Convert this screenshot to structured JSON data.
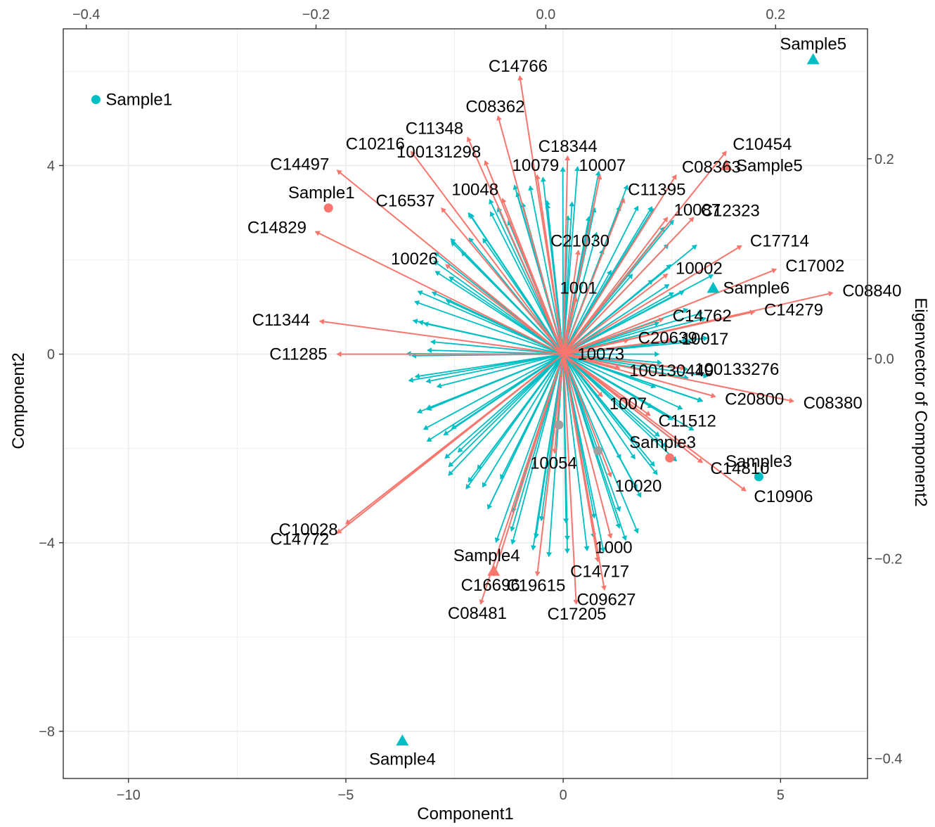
{
  "chart_data": {
    "type": "scatter",
    "title": "",
    "xlabel": "Component1",
    "ylabel": "Component2",
    "x2label": "",
    "y2label": "Eigenvector of Component2",
    "xlim": [
      -11.5,
      7.0
    ],
    "ylim": [
      -9.0,
      6.9
    ],
    "x2lim": [
      -0.42,
      0.28
    ],
    "y2lim": [
      -0.42,
      0.33
    ],
    "x_ticks": [
      -10,
      -5,
      0,
      5
    ],
    "y_ticks": [
      -8,
      -4,
      0,
      4
    ],
    "x2_ticks": [
      -0.4,
      -0.2,
      0.0,
      0.2
    ],
    "y2_ticks": [
      -0.4,
      -0.2,
      0.0,
      0.2
    ],
    "x_tick_labels": [
      "−10",
      "−5",
      "0",
      "5"
    ],
    "y_tick_labels": [
      "−8",
      "−4",
      "0",
      "4"
    ],
    "x2_tick_labels": [
      "−0.4",
      "−0.2",
      "0.0",
      "0.2"
    ],
    "y2_tick_labels": [
      "−0.4",
      "−0.2",
      "0.0",
      "0.2"
    ],
    "grid": true,
    "colors": {
      "red": "#f8766d",
      "teal": "#00bfc4",
      "panel_border": "#333333",
      "grid": "#ebebeb"
    },
    "samples": [
      {
        "label": "Sample1",
        "x": -10.75,
        "y": 5.4,
        "shape": "circle",
        "color": "teal",
        "label_pos": "right"
      },
      {
        "label": "Sample1",
        "x": -5.4,
        "y": 3.1,
        "shape": "circle",
        "color": "red",
        "label_pos": "above-left"
      },
      {
        "label": "Sample5",
        "x": 5.75,
        "y": 6.25,
        "shape": "triangle",
        "color": "teal",
        "label_pos": "above"
      },
      {
        "label": "Sample5",
        "x": 3.75,
        "y": 4.0,
        "shape": "triangle",
        "color": "red",
        "label_pos": "right"
      },
      {
        "label": "Sample6",
        "x": 3.45,
        "y": 1.4,
        "shape": "triangle",
        "color": "teal",
        "label_pos": "right"
      },
      {
        "label": "Sample3",
        "x": 2.45,
        "y": -2.2,
        "shape": "circle",
        "color": "red",
        "label_pos": "above-left"
      },
      {
        "label": "Sample3",
        "x": 4.5,
        "y": -2.6,
        "shape": "circle",
        "color": "teal",
        "label_pos": "above"
      },
      {
        "label": "Sample4",
        "x": -1.6,
        "y": -4.6,
        "shape": "triangle",
        "color": "red",
        "label_pos": "above-left"
      },
      {
        "label": "Sample4",
        "x": -3.7,
        "y": -8.2,
        "shape": "triangle",
        "color": "teal",
        "label_pos": "below"
      },
      {
        "label": "",
        "x": -0.1,
        "y": -1.5,
        "shape": "circle",
        "color": "grey",
        "label_pos": "none"
      },
      {
        "label": "",
        "x": 0.8,
        "y": -2.05,
        "shape": "circle",
        "color": "grey",
        "label_pos": "none"
      }
    ],
    "labeled_vectors": [
      {
        "label": "C14766",
        "x": -1.0,
        "y": 5.9
      },
      {
        "label": "C08362",
        "x": -1.5,
        "y": 5.05
      },
      {
        "label": "C10216",
        "x": -3.5,
        "y": 4.3
      },
      {
        "label": "C11348",
        "x": -2.2,
        "y": 4.6
      },
      {
        "label": "C14497",
        "x": -5.2,
        "y": 3.9
      },
      {
        "label": "100131298",
        "x": -1.8,
        "y": 4.1
      },
      {
        "label": "C16537",
        "x": -2.8,
        "y": 3.1
      },
      {
        "label": "10048",
        "x": -1.4,
        "y": 3.3
      },
      {
        "label": "10079",
        "x": -0.6,
        "y": 3.8
      },
      {
        "label": "C18344",
        "x": 0.1,
        "y": 4.2
      },
      {
        "label": "10007",
        "x": 0.85,
        "y": 3.8
      },
      {
        "label": "C11395",
        "x": 1.4,
        "y": 3.3
      },
      {
        "label": "C08363",
        "x": 2.6,
        "y": 3.8
      },
      {
        "label": "C10454",
        "x": 3.75,
        "y": 4.3
      },
      {
        "label": "C12323",
        "x": 3.0,
        "y": 2.9
      },
      {
        "label": "10087",
        "x": 2.4,
        "y": 2.9
      },
      {
        "label": "C21030",
        "x": 0.35,
        "y": 2.2
      },
      {
        "label": "10026",
        "x": -2.7,
        "y": 1.9
      },
      {
        "label": "C14829",
        "x": -5.7,
        "y": 2.6
      },
      {
        "label": "1001",
        "x": 0.3,
        "y": 1.2
      },
      {
        "label": "10002",
        "x": 2.4,
        "y": 1.7
      },
      {
        "label": "C17714",
        "x": 4.1,
        "y": 2.3
      },
      {
        "label": "C17002",
        "x": 4.9,
        "y": 1.8
      },
      {
        "label": "C08840",
        "x": 6.2,
        "y": 1.3
      },
      {
        "label": "C14279",
        "x": 4.4,
        "y": 0.9
      },
      {
        "label": "C11344",
        "x": -5.6,
        "y": 0.7
      },
      {
        "label": "C14762",
        "x": 2.3,
        "y": 0.75
      },
      {
        "label": "C20639",
        "x": 1.5,
        "y": 0.3
      },
      {
        "label": "10017",
        "x": 2.5,
        "y": 0.3
      },
      {
        "label": "C11285",
        "x": -5.2,
        "y": 0.0
      },
      {
        "label": "10073",
        "x": 0.1,
        "y": 0.0
      },
      {
        "label": "100130449",
        "x": 1.3,
        "y": -0.3
      },
      {
        "label": "100133276",
        "x": 2.8,
        "y": -0.3
      },
      {
        "label": "1007",
        "x": 0.9,
        "y": -0.9
      },
      {
        "label": "C11512",
        "x": 2.0,
        "y": -1.3
      },
      {
        "label": "C20800",
        "x": 3.5,
        "y": -0.9
      },
      {
        "label": "C08380",
        "x": 5.3,
        "y": -1.0
      },
      {
        "label": "10054",
        "x": -0.2,
        "y": -2.1
      },
      {
        "label": "10020",
        "x": 1.1,
        "y": -2.6
      },
      {
        "label": "C14810",
        "x": 3.2,
        "y": -2.3
      },
      {
        "label": "C10906",
        "x": 4.2,
        "y": -2.9
      },
      {
        "label": "1000",
        "x": 1.1,
        "y": -3.9
      },
      {
        "label": "C10028",
        "x": -5.0,
        "y": -3.6
      },
      {
        "label": "C14772",
        "x": -5.2,
        "y": -3.8
      },
      {
        "label": "C14717",
        "x": 0.8,
        "y": -4.4
      },
      {
        "label": "C16696",
        "x": -1.6,
        "y": -4.7
      },
      {
        "label": "C19615",
        "x": -0.6,
        "y": -4.7
      },
      {
        "label": "C09627",
        "x": 0.95,
        "y": -5.0
      },
      {
        "label": "C08481",
        "x": -1.9,
        "y": -5.3
      },
      {
        "label": "C17205",
        "x": 0.3,
        "y": -5.3
      }
    ]
  }
}
